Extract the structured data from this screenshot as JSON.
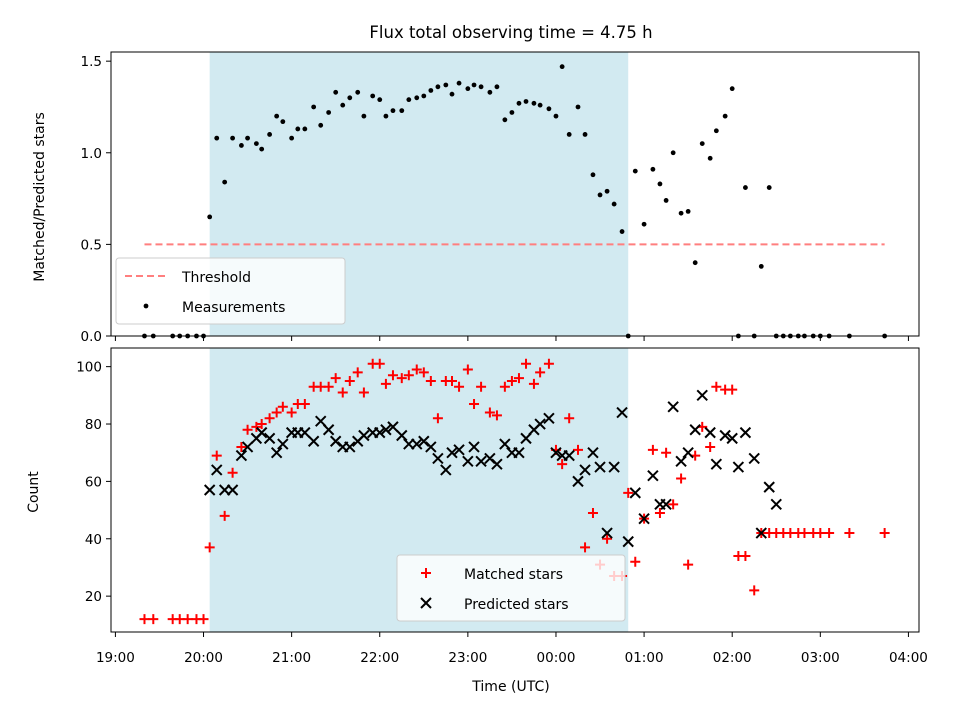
{
  "title": "Flux total observing time = 4.75 h",
  "colors": {
    "shade": "#add8e6",
    "threshold": "#ff7f7f",
    "matched": "#ff0000",
    "predicted": "#000000",
    "measurement": "#000000"
  },
  "chart_data": [
    {
      "type": "scatter",
      "panel": "top",
      "ylabel": "Matched/Predicted stars",
      "xlabel": "",
      "ylim": [
        0,
        1.55
      ],
      "yticks": [
        0,
        0.5,
        1.0,
        1.5
      ],
      "ytick_labels": [
        "0.0",
        "0.5",
        "1.0",
        "1.5"
      ],
      "xlim_hours": [
        -0.05,
        9.12
      ],
      "shaded_span_hours": [
        1.07,
        5.82
      ],
      "legend": [
        "Threshold",
        "Measurements"
      ],
      "legend_location": "lower-left",
      "threshold": {
        "name": "Threshold",
        "value": 0.5,
        "x_range_hours": [
          0.33,
          8.73
        ]
      },
      "series": [
        {
          "name": "Measurements",
          "x_hours": [
            0.33,
            0.43,
            0.65,
            0.73,
            0.82,
            0.92,
            1.0,
            1.07,
            1.15,
            1.24,
            1.33,
            1.43,
            1.5,
            1.6,
            1.66,
            1.75,
            1.83,
            1.9,
            2.0,
            2.07,
            2.15,
            2.25,
            2.33,
            2.42,
            2.5,
            2.58,
            2.66,
            2.75,
            2.82,
            2.92,
            3.0,
            3.07,
            3.15,
            3.25,
            3.33,
            3.42,
            3.5,
            3.58,
            3.66,
            3.75,
            3.82,
            3.9,
            4.0,
            4.07,
            4.15,
            4.25,
            4.33,
            4.42,
            4.5,
            4.58,
            4.66,
            4.75,
            4.82,
            4.92,
            5.0,
            5.07,
            5.15,
            5.25,
            5.33,
            5.42,
            5.5,
            5.58,
            5.66,
            5.75,
            5.82,
            5.9,
            6.0,
            6.1,
            6.18,
            6.25,
            6.33,
            6.42,
            6.5,
            6.58,
            6.66,
            6.75,
            6.82,
            6.92,
            7.0,
            7.07,
            7.15,
            7.25,
            7.33,
            7.42,
            7.5,
            7.58,
            7.66,
            7.75,
            7.82,
            7.92,
            8.0,
            8.1,
            8.33,
            8.73
          ],
          "y": [
            0,
            0,
            0,
            0,
            0,
            0,
            0,
            0.65,
            1.08,
            0.84,
            1.08,
            1.04,
            1.08,
            1.05,
            1.02,
            1.1,
            1.2,
            1.17,
            1.08,
            1.13,
            1.13,
            1.25,
            1.15,
            1.22,
            1.33,
            1.26,
            1.3,
            1.33,
            1.2,
            1.31,
            1.29,
            1.2,
            1.23,
            1.23,
            1.29,
            1.3,
            1.31,
            1.34,
            1.36,
            1.37,
            1.32,
            1.38,
            1.35,
            1.37,
            1.36,
            1.33,
            1.36,
            1.18,
            1.22,
            1.27,
            1.28,
            1.27,
            1.26,
            1.24,
            1.2,
            1.47,
            1.1,
            1.25,
            1.1,
            0.88,
            0.77,
            0.79,
            0.72,
            0.57,
            0,
            0.9,
            0.61,
            0.91,
            0.83,
            0.74,
            1.0,
            0.67,
            0.68,
            0.4,
            1.05,
            0.97,
            1.12,
            1.2,
            1.35,
            0,
            0.81,
            0,
            0.38,
            0.81,
            0,
            0,
            0,
            0,
            0,
            0,
            0,
            0,
            0,
            0
          ]
        }
      ]
    },
    {
      "type": "scatter",
      "panel": "bottom",
      "xlabel": "Time (UTC)",
      "ylabel": "Count",
      "ylim": [
        7.5,
        106.5
      ],
      "yticks": [
        20,
        40,
        60,
        80,
        100
      ],
      "ytick_labels": [
        "20",
        "40",
        "60",
        "80",
        "100"
      ],
      "xlim_hours": [
        -0.05,
        9.12
      ],
      "xticks_hours": [
        0,
        1,
        2,
        3,
        4,
        5,
        6,
        7,
        8,
        9
      ],
      "xtick_labels": [
        "19:00",
        "20:00",
        "21:00",
        "22:00",
        "23:00",
        "00:00",
        "01:00",
        "02:00",
        "03:00",
        "04:00"
      ],
      "shaded_span_hours": [
        1.07,
        5.82
      ],
      "legend": [
        "Matched stars",
        "Predicted stars"
      ],
      "legend_location": "lower-center",
      "series": [
        {
          "name": "Matched stars",
          "marker": "+",
          "x_hours": [
            0.33,
            0.43,
            0.65,
            0.73,
            0.82,
            0.92,
            1.0,
            1.07,
            1.15,
            1.24,
            1.33,
            1.43,
            1.5,
            1.6,
            1.66,
            1.75,
            1.83,
            1.9,
            2.0,
            2.07,
            2.15,
            2.25,
            2.33,
            2.42,
            2.5,
            2.58,
            2.66,
            2.75,
            2.82,
            2.92,
            3.0,
            3.07,
            3.15,
            3.25,
            3.33,
            3.42,
            3.5,
            3.58,
            3.66,
            3.75,
            3.82,
            3.9,
            4.0,
            4.07,
            4.15,
            4.25,
            4.33,
            4.42,
            4.5,
            4.58,
            4.66,
            4.75,
            4.82,
            4.92,
            5.0,
            5.07,
            5.15,
            5.25,
            5.33,
            5.42,
            5.5,
            5.58,
            5.66,
            5.75,
            5.82,
            5.9,
            6.0,
            6.1,
            6.18,
            6.25,
            6.33,
            6.42,
            6.5,
            6.58,
            6.66,
            6.75,
            6.82,
            6.92,
            7.0,
            7.07,
            7.15,
            7.25,
            7.33,
            7.42,
            7.5,
            7.58,
            7.66,
            7.75,
            7.82,
            7.92,
            8.0,
            8.1,
            8.33,
            8.73
          ],
          "y": [
            12,
            12,
            12,
            12,
            12,
            12,
            12,
            37,
            69,
            48,
            63,
            72,
            78,
            79,
            80,
            82,
            84,
            86,
            84,
            87,
            87,
            93,
            93,
            93,
            96,
            91,
            95,
            98,
            91,
            101,
            101,
            94,
            97,
            96,
            97,
            99,
            98,
            95,
            82,
            95,
            95,
            93,
            99,
            87,
            93,
            84,
            83,
            93,
            95,
            96,
            101,
            94,
            98,
            101,
            71,
            66,
            82,
            71,
            37,
            49,
            31,
            40,
            27,
            27,
            56,
            32,
            47,
            71,
            49,
            70,
            52,
            61,
            31,
            69,
            79,
            72,
            93,
            92,
            92,
            34,
            34,
            22,
            42,
            42,
            42,
            42,
            42,
            42,
            42,
            42,
            42,
            42,
            42,
            42
          ]
        },
        {
          "name": "Predicted stars",
          "marker": "x",
          "x_hours": [
            1.07,
            1.15,
            1.24,
            1.33,
            1.43,
            1.5,
            1.6,
            1.66,
            1.75,
            1.83,
            1.9,
            2.0,
            2.07,
            2.15,
            2.25,
            2.33,
            2.42,
            2.5,
            2.58,
            2.66,
            2.75,
            2.82,
            2.92,
            3.0,
            3.07,
            3.15,
            3.25,
            3.33,
            3.42,
            3.5,
            3.58,
            3.66,
            3.75,
            3.82,
            3.9,
            4.0,
            4.07,
            4.15,
            4.25,
            4.33,
            4.42,
            4.5,
            4.58,
            4.66,
            4.75,
            4.82,
            4.92,
            5.0,
            5.07,
            5.15,
            5.25,
            5.33,
            5.42,
            5.5,
            5.58,
            5.66,
            5.75,
            5.82,
            5.9,
            6.0,
            6.1,
            6.18,
            6.25,
            6.33,
            6.42,
            6.5,
            6.58,
            6.66,
            6.75,
            6.82,
            6.92,
            7.0,
            7.07,
            7.15,
            7.25,
            7.33,
            7.42,
            7.5
          ],
          "y": [
            57,
            64,
            57,
            57,
            69,
            72,
            75,
            77,
            75,
            70,
            73,
            77,
            77,
            77,
            74,
            81,
            78,
            74,
            72,
            72,
            74,
            76,
            77,
            77,
            78,
            79,
            76,
            73,
            73,
            74,
            72,
            68,
            64,
            70,
            71,
            67,
            72,
            67,
            68,
            66,
            73,
            70,
            70,
            75,
            78,
            80,
            82,
            70,
            69,
            69,
            60,
            64,
            70,
            65,
            42,
            65,
            84,
            39,
            56,
            47,
            62,
            52,
            52,
            86,
            67,
            70,
            78,
            90,
            77,
            66,
            76,
            75,
            65,
            77,
            68,
            42,
            58,
            52
          ]
        }
      ]
    }
  ]
}
